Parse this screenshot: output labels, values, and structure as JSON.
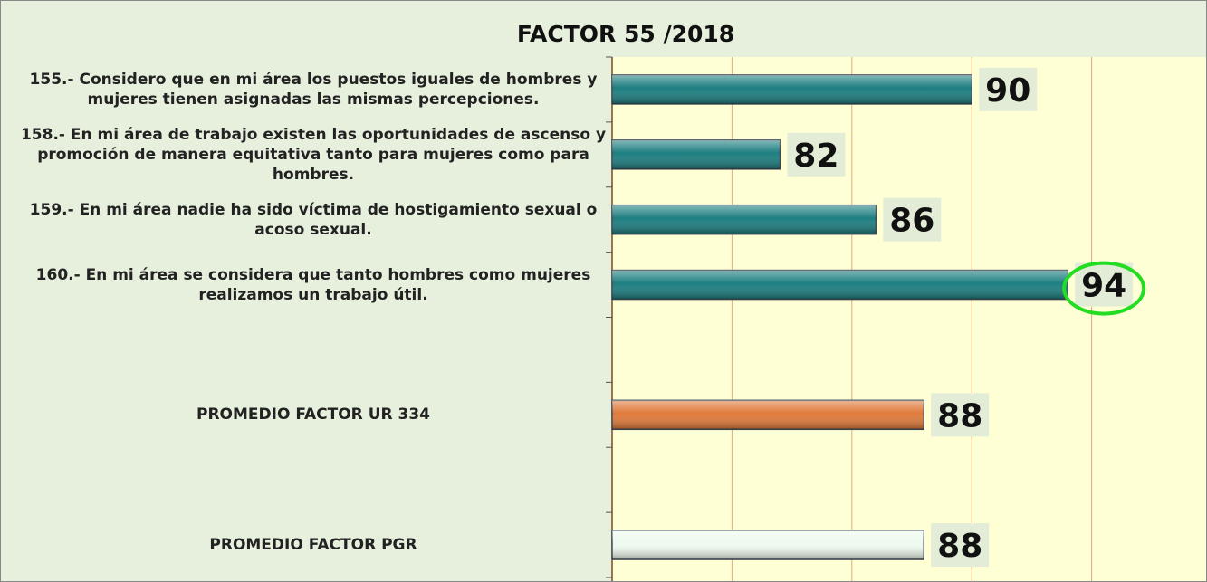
{
  "chart_data": {
    "type": "bar",
    "orientation": "horizontal",
    "title": "FACTOR 55 /2018",
    "categories": [
      "155.- Considero que en mi área los puestos iguales de hombres y mujeres tienen asignadas las mismas percepciones.",
      "158.- En mi área de trabajo existen las oportunidades de ascenso y promoción de manera equitativa tanto para mujeres como para hombres.",
      "159.- En mi área nadie ha sido víctima de hostigamiento sexual o acoso sexual.",
      "160.- En mi área se considera que tanto hombres como mujeres realizamos un trabajo útil.",
      null,
      "PROMEDIO FACTOR UR 334",
      null,
      "PROMEDIO FACTOR PGR"
    ],
    "values": [
      90,
      82,
      86,
      94,
      null,
      88,
      null,
      88
    ],
    "colors": [
      "#1d7e80",
      "#1d7e80",
      "#1d7e80",
      "#1d7e80",
      null,
      "#e07a3a",
      null,
      "#eefaee"
    ],
    "xlim": [
      75,
      100
    ],
    "xticks": [
      75,
      80,
      85,
      90,
      95,
      100
    ],
    "grid": true
  }
}
